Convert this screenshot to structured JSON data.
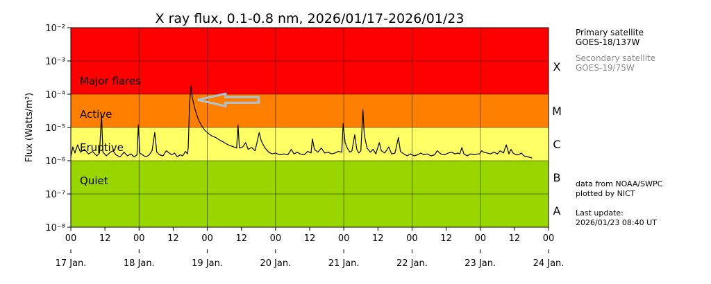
{
  "chart_data": {
    "type": "line",
    "title": "X ray flux, 0.1-0.8 nm, 2026/01/17-2026/01/23",
    "ylabel": "Flux (Watts/m²)",
    "y_scale": "log",
    "ylim": [
      1e-08,
      0.01
    ],
    "y_ticks": [
      {
        "exp": -8,
        "label": "10⁻⁸"
      },
      {
        "exp": -7,
        "label": "10⁻⁷"
      },
      {
        "exp": -6,
        "label": "10⁻⁶"
      },
      {
        "exp": -5,
        "label": "10⁻⁵"
      },
      {
        "exp": -4,
        "label": "10⁻⁴"
      },
      {
        "exp": -3,
        "label": "10⁻³"
      },
      {
        "exp": -2,
        "label": "10⁻²"
      }
    ],
    "xlim_days": [
      0,
      7
    ],
    "hour_ticks": [
      "00",
      "12",
      "00",
      "12",
      "00",
      "12",
      "00",
      "12",
      "00",
      "12",
      "00",
      "12",
      "00",
      "12",
      "00"
    ],
    "day_ticks": [
      "17 Jan.",
      "18 Jan.",
      "19 Jan.",
      "20 Jan.",
      "21 Jan.",
      "22 Jan.",
      "23 Jan.",
      "24 Jan."
    ],
    "grid": true,
    "bands": [
      {
        "name": "Major flares",
        "class_letter": "X",
        "from_exp": -4,
        "to_exp": -2,
        "color": "#ff0000"
      },
      {
        "name": "Active",
        "class_letter": "M",
        "from_exp": -5,
        "to_exp": -4,
        "color": "#ff7f00"
      },
      {
        "name": "Eruptive",
        "class_letter": "C",
        "from_exp": -6,
        "to_exp": -5,
        "color": "#ffff66"
      },
      {
        "name": "Quiet",
        "class_letter": "B",
        "from_exp": -7,
        "to_exp": -6,
        "color": "#99d600"
      },
      {
        "name": "",
        "class_letter": "A",
        "from_exp": -8,
        "to_exp": -7,
        "color": "#99d600"
      }
    ],
    "series": [
      {
        "color": "#000000",
        "points": [
          [
            0.0,
            1.3e-06
          ],
          [
            0.03,
            2.6e-06
          ],
          [
            0.06,
            1.7e-06
          ],
          [
            0.1,
            3e-06
          ],
          [
            0.14,
            1.8e-06
          ],
          [
            0.2,
            2.2e-06
          ],
          [
            0.26,
            1.6e-06
          ],
          [
            0.32,
            1.9e-06
          ],
          [
            0.38,
            1.4e-06
          ],
          [
            0.42,
            1.7e-06
          ],
          [
            0.45,
            2.4e-05
          ],
          [
            0.47,
            1.8e-06
          ],
          [
            0.52,
            1.4e-06
          ],
          [
            0.58,
            1.8e-06
          ],
          [
            0.62,
            2e-06
          ],
          [
            0.66,
            1.5e-06
          ],
          [
            0.72,
            1.3e-06
          ],
          [
            0.78,
            1.8e-06
          ],
          [
            0.83,
            1.4e-06
          ],
          [
            0.88,
            1.6e-06
          ],
          [
            0.93,
            1.3e-06
          ],
          [
            0.97,
            1.5e-06
          ],
          [
            0.99,
            1.2e-05
          ],
          [
            1.01,
            1.7e-06
          ],
          [
            1.05,
            1.5e-06
          ],
          [
            1.1,
            1.3e-06
          ],
          [
            1.15,
            1.5e-06
          ],
          [
            1.19,
            2e-06
          ],
          [
            1.23,
            7e-06
          ],
          [
            1.26,
            1.8e-06
          ],
          [
            1.3,
            1.5e-06
          ],
          [
            1.35,
            1.4e-06
          ],
          [
            1.4,
            2e-06
          ],
          [
            1.44,
            1.7e-06
          ],
          [
            1.48,
            1.5e-06
          ],
          [
            1.52,
            1.7e-06
          ],
          [
            1.56,
            1.3e-06
          ],
          [
            1.6,
            1.5e-06
          ],
          [
            1.64,
            1.4e-06
          ],
          [
            1.68,
            1.9e-06
          ],
          [
            1.71,
            1.6e-06
          ],
          [
            1.72,
            2.5e-06
          ],
          [
            1.74,
            5e-05
          ],
          [
            1.76,
            0.00018
          ],
          [
            1.78,
            8e-05
          ],
          [
            1.82,
            3.5e-05
          ],
          [
            1.87,
            1.7e-05
          ],
          [
            1.92,
            1.1e-05
          ],
          [
            1.97,
            8e-06
          ],
          [
            2.02,
            6.5e-06
          ],
          [
            2.07,
            5.5e-06
          ],
          [
            2.12,
            5e-06
          ],
          [
            2.17,
            4.3e-06
          ],
          [
            2.22,
            3.8e-06
          ],
          [
            2.27,
            3.3e-06
          ],
          [
            2.32,
            2.9e-06
          ],
          [
            2.37,
            2.7e-06
          ],
          [
            2.43,
            2.4e-06
          ],
          [
            2.45,
            1.2e-05
          ],
          [
            2.47,
            2.4e-06
          ],
          [
            2.52,
            2.6e-06
          ],
          [
            2.56,
            3.5e-06
          ],
          [
            2.6,
            2.2e-06
          ],
          [
            2.65,
            2.5e-06
          ],
          [
            2.7,
            2e-06
          ],
          [
            2.76,
            7e-06
          ],
          [
            2.79,
            4e-06
          ],
          [
            2.84,
            2.5e-06
          ],
          [
            2.9,
            1.8e-06
          ],
          [
            2.95,
            1.6e-06
          ],
          [
            3.0,
            1.7e-06
          ],
          [
            3.06,
            1.5e-06
          ],
          [
            3.12,
            1.6e-06
          ],
          [
            3.18,
            1.5e-06
          ],
          [
            3.23,
            2.2e-06
          ],
          [
            3.27,
            1.6e-06
          ],
          [
            3.32,
            1.8e-06
          ],
          [
            3.36,
            1.6e-06
          ],
          [
            3.42,
            1.5e-06
          ],
          [
            3.47,
            1.9e-06
          ],
          [
            3.52,
            1.7e-06
          ],
          [
            3.54,
            4.5e-06
          ],
          [
            3.57,
            2.2e-06
          ],
          [
            3.62,
            1.8e-06
          ],
          [
            3.67,
            2.4e-06
          ],
          [
            3.72,
            1.7e-06
          ],
          [
            3.77,
            1.8e-06
          ],
          [
            3.82,
            1.6e-06
          ],
          [
            3.87,
            1.7e-06
          ],
          [
            3.92,
            1.9e-06
          ],
          [
            3.97,
            1.8e-06
          ],
          [
            3.99,
            1.3e-05
          ],
          [
            4.02,
            3.5e-06
          ],
          [
            4.05,
            2.4e-06
          ],
          [
            4.09,
            1.8e-06
          ],
          [
            4.12,
            2e-06
          ],
          [
            4.16,
            6e-06
          ],
          [
            4.19,
            2.2e-06
          ],
          [
            4.22,
            1.7e-06
          ],
          [
            4.25,
            2e-06
          ],
          [
            4.28,
            3.4e-05
          ],
          [
            4.3,
            6e-06
          ],
          [
            4.34,
            2.4e-06
          ],
          [
            4.39,
            1.8e-06
          ],
          [
            4.43,
            2.2e-06
          ],
          [
            4.47,
            1.6e-06
          ],
          [
            4.52,
            3.5e-06
          ],
          [
            4.55,
            2e-06
          ],
          [
            4.6,
            1.7e-06
          ],
          [
            4.66,
            2.6e-06
          ],
          [
            4.7,
            1.6e-06
          ],
          [
            4.75,
            1.7e-06
          ],
          [
            4.8,
            5e-06
          ],
          [
            4.83,
            1.9e-06
          ],
          [
            4.88,
            1.6e-06
          ],
          [
            4.93,
            1.4e-06
          ],
          [
            4.98,
            1.6e-06
          ],
          [
            5.03,
            1.4e-06
          ],
          [
            5.08,
            1.5e-06
          ],
          [
            5.13,
            1.7e-06
          ],
          [
            5.17,
            1.5e-06
          ],
          [
            5.22,
            1.6e-06
          ],
          [
            5.28,
            1.4e-06
          ],
          [
            5.33,
            1.5e-06
          ],
          [
            5.37,
            2e-06
          ],
          [
            5.42,
            1.6e-06
          ],
          [
            5.48,
            1.5e-06
          ],
          [
            5.53,
            1.7e-06
          ],
          [
            5.58,
            1.8e-06
          ],
          [
            5.63,
            1.6e-06
          ],
          [
            5.67,
            1.7e-06
          ],
          [
            5.7,
            1.6e-06
          ],
          [
            5.73,
            2.5e-06
          ],
          [
            5.76,
            1.6e-06
          ],
          [
            5.81,
            1.4e-06
          ],
          [
            5.86,
            1.6e-06
          ],
          [
            5.91,
            1.5e-06
          ],
          [
            5.96,
            1.6e-06
          ],
          [
            5.99,
            1.6e-06
          ],
          [
            6.02,
            2e-06
          ],
          [
            6.05,
            1.8e-06
          ],
          [
            6.1,
            1.7e-06
          ],
          [
            6.15,
            1.6e-06
          ],
          [
            6.2,
            1.8e-06
          ],
          [
            6.25,
            1.6e-06
          ],
          [
            6.29,
            2e-06
          ],
          [
            6.34,
            1.7e-06
          ],
          [
            6.38,
            3e-06
          ],
          [
            6.42,
            1.6e-06
          ],
          [
            6.45,
            2.2e-06
          ],
          [
            6.48,
            1.7e-06
          ],
          [
            6.52,
            1.5e-06
          ],
          [
            6.56,
            1.5e-06
          ],
          [
            6.6,
            1.7e-06
          ],
          [
            6.64,
            1.4e-06
          ],
          [
            6.7,
            1.3e-06
          ],
          [
            6.76,
            1.2e-06
          ]
        ]
      }
    ],
    "arrow": {
      "tip_day": 1.86,
      "tip_exp": -4.17,
      "tail_day": 2.75
    }
  },
  "legend": {
    "primary_line1": "Primary satellite",
    "primary_line2": "GOES-18/137W",
    "secondary_line1": "Secondary satellite",
    "secondary_line2": "GOES-19/75W",
    "source_line1": "data from NOAA/SWPC",
    "source_line2": "plotted by NICT",
    "update_line1": "Last update:",
    "update_line2": "2026/01/23 08:40 UT"
  }
}
